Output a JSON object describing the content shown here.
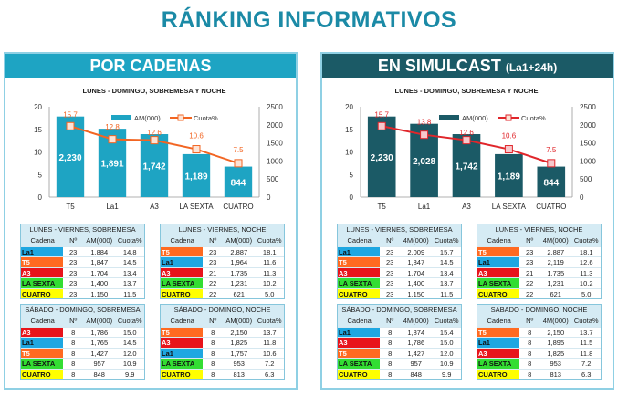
{
  "title": "RÁNKING INFORMATIVOS",
  "channel_colors": {
    "La1": "#1ea7e1",
    "T5": "#ff6a21",
    "A3": "#e8141b",
    "LA SEXTA": "#33dd33",
    "CUATRO": "#ffff00"
  },
  "panels": [
    {
      "header": "POR CADENAS",
      "header_suffix": "",
      "chart_data": {
        "type": "bar+line",
        "title": "LUNES - DOMINGO,  SOBREMESA  Y NOCHE",
        "categories": [
          "T5",
          "La1",
          "A3",
          "LA SEXTA",
          "CUATRO"
        ],
        "series": [
          {
            "name": "AM(000)",
            "type": "bar",
            "axis": "right",
            "values": [
              2230,
              1891,
              1742,
              1189,
              844
            ],
            "labels": [
              "2,230",
              "1,891",
              "1,742",
              "1,189",
              "844"
            ],
            "color": "#1ea4c3"
          },
          {
            "name": "Cuota%",
            "type": "line",
            "axis": "left",
            "values": [
              15.7,
              12.8,
              12.6,
              10.6,
              7.5
            ],
            "color": "#f26522"
          }
        ],
        "left_ylim": [
          0,
          20
        ],
        "left_ticks": [
          "0",
          "5",
          "10",
          "15",
          "20"
        ],
        "right_ylim": [
          0,
          2500
        ],
        "right_ticks": [
          "0",
          "500",
          "1000",
          "1500",
          "2000",
          "2500"
        ],
        "legend": "top-center",
        "grid": false
      },
      "tables": [
        {
          "title": "LUNES - VIERNES, SOBREMESA",
          "columns": [
            "Cadena",
            "Nº",
            "AM(000)",
            "Cuota%"
          ],
          "rows": [
            [
              "La1",
              "23",
              "1,884",
              "14.8"
            ],
            [
              "T5",
              "23",
              "1,847",
              "14.5"
            ],
            [
              "A3",
              "23",
              "1,704",
              "13.4"
            ],
            [
              "LA SEXTA",
              "23",
              "1,400",
              "13.7"
            ],
            [
              "CUATRO",
              "23",
              "1,150",
              "11.5"
            ]
          ]
        },
        {
          "title": "LUNES - VIERNES, NOCHE",
          "columns": [
            "Cadena",
            "Nº",
            "AM(000)",
            "Cuota%"
          ],
          "rows": [
            [
              "T5",
              "23",
              "2,887",
              "18.1"
            ],
            [
              "La1",
              "23",
              "1,964",
              "11.6"
            ],
            [
              "A3",
              "21",
              "1,735",
              "11.3"
            ],
            [
              "LA SEXTA",
              "22",
              "1,231",
              "10.2"
            ],
            [
              "CUATRO",
              "22",
              "621",
              "5.0"
            ]
          ]
        },
        {
          "title": "SÁBADO - DOMINGO, SOBREMESA",
          "columns": [
            "Cadena",
            "Nº",
            "AM(000)",
            "Cuota%"
          ],
          "rows": [
            [
              "A3",
              "8",
              "1,786",
              "15.0"
            ],
            [
              "La1",
              "8",
              "1,765",
              "14.5"
            ],
            [
              "T5",
              "8",
              "1,427",
              "12.0"
            ],
            [
              "LA SEXTA",
              "8",
              "957",
              "10.9"
            ],
            [
              "CUATRO",
              "8",
              "848",
              "9.9"
            ]
          ]
        },
        {
          "title": "SÁBADO - DOMINGO, NOCHE",
          "columns": [
            "Cadena",
            "Nº",
            "AM(000)",
            "Cuota%"
          ],
          "rows": [
            [
              "T5",
              "8",
              "2,150",
              "13.7"
            ],
            [
              "A3",
              "8",
              "1,825",
              "11.8"
            ],
            [
              "La1",
              "8",
              "1,757",
              "10.6"
            ],
            [
              "LA SEXTA",
              "8",
              "953",
              "7.2"
            ],
            [
              "CUATRO",
              "8",
              "813",
              "6.3"
            ]
          ]
        }
      ]
    },
    {
      "header": "EN SIMULCAST",
      "header_suffix": "(La1+24h)",
      "chart_data": {
        "type": "bar+line",
        "title": "LUNES - DOMINGO,  SOBREMESA  Y NOCHE",
        "categories": [
          "T5",
          "La1",
          "A3",
          "LA SEXTA",
          "CUATRO"
        ],
        "series": [
          {
            "name": "AM(000)",
            "type": "bar",
            "axis": "right",
            "values": [
              2230,
              2028,
              1742,
              1189,
              844
            ],
            "labels": [
              "2,230",
              "2,028",
              "1,742",
              "1,189",
              "844"
            ],
            "color": "#1b5a66"
          },
          {
            "name": "Cuota%",
            "type": "line",
            "axis": "left",
            "values": [
              15.7,
              13.8,
              12.6,
              10.6,
              7.5
            ],
            "color": "#e0262b"
          }
        ],
        "left_ylim": [
          0,
          20
        ],
        "left_ticks": [
          "0",
          "5",
          "10",
          "15",
          "20"
        ],
        "right_ylim": [
          0,
          2500
        ],
        "right_ticks": [
          "0",
          "500",
          "1000",
          "1500",
          "2000",
          "2500"
        ],
        "legend": "top-center",
        "grid": false
      },
      "tables": [
        {
          "title": "LUNES - VIERNES, SOBREMESA",
          "columns": [
            "Cadena",
            "Nº",
            "4M(000)",
            "Cuota%"
          ],
          "rows": [
            [
              "La1",
              "23",
              "2,009",
              "15.7"
            ],
            [
              "T5",
              "23",
              "1,847",
              "14.5"
            ],
            [
              "A3",
              "23",
              "1,704",
              "13.4"
            ],
            [
              "LA SEXTA",
              "23",
              "1,400",
              "13.7"
            ],
            [
              "CUATRO",
              "23",
              "1,150",
              "11.5"
            ]
          ]
        },
        {
          "title": "LUNES - VIERNES, NOCHE",
          "columns": [
            "Cadena",
            "Nº",
            "4M(000)",
            "Cuota%"
          ],
          "rows": [
            [
              "T5",
              "23",
              "2,887",
              "18.1"
            ],
            [
              "La1",
              "23",
              "2,119",
              "12.6"
            ],
            [
              "A3",
              "21",
              "1,735",
              "11.3"
            ],
            [
              "LA SEXTA",
              "22",
              "1,231",
              "10.2"
            ],
            [
              "CUATRO",
              "22",
              "621",
              "5.0"
            ]
          ]
        },
        {
          "title": "SÁBADO - DOMINGO, SOBREMESA",
          "columns": [
            "Cadena",
            "Nº",
            "4M(000)",
            "Cuota%"
          ],
          "rows": [
            [
              "La1",
              "8",
              "1,874",
              "15.4"
            ],
            [
              "A3",
              "8",
              "1,786",
              "15.0"
            ],
            [
              "T5",
              "8",
              "1,427",
              "12.0"
            ],
            [
              "LA SEXTA",
              "8",
              "957",
              "10.9"
            ],
            [
              "CUATRO",
              "8",
              "848",
              "9.9"
            ]
          ]
        },
        {
          "title": "SÁBADO - DOMINGO, NOCHE",
          "columns": [
            "Cadena",
            "Nº",
            "4M(000)",
            "Cuota%"
          ],
          "rows": [
            [
              "T5",
              "8",
              "2,150",
              "13.7"
            ],
            [
              "La1",
              "8",
              "1,895",
              "11.5"
            ],
            [
              "A3",
              "8",
              "1,825",
              "11.8"
            ],
            [
              "LA SEXTA",
              "8",
              "953",
              "7.2"
            ],
            [
              "CUATRO",
              "8",
              "813",
              "6.3"
            ]
          ]
        }
      ]
    }
  ]
}
